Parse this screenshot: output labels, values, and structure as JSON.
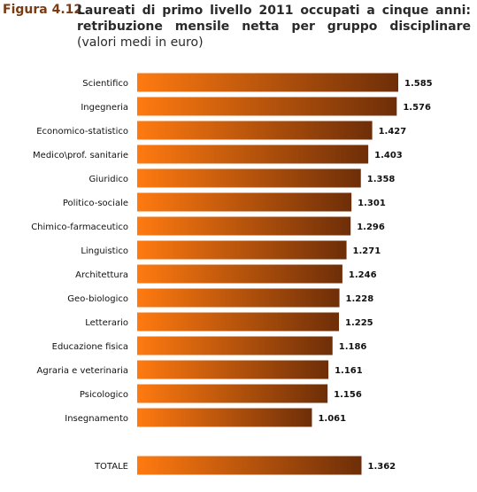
{
  "figure": {
    "label": "Figura 4.12",
    "title": "Laureati di primo livello 2011 occupati a cinque anni: retribuzione mensile netta per gruppo disciplinare",
    "subtitle": "(valori medi in euro)"
  },
  "colors": {
    "bar_start": "#ff7a10",
    "bar_end": "#6e2e08"
  },
  "chart_data": {
    "type": "bar",
    "orientation": "horizontal",
    "title": "Laureati di primo livello 2011 occupati a cinque anni: retribuzione mensile netta per gruppo disciplinare (valori medi in euro)",
    "categories": [
      "Scientifico",
      "Ingegneria",
      "Economico-statistico",
      "Medico\\prof. sanitarie",
      "Giuridico",
      "Politico-sociale",
      "Chimico-farmaceutico",
      "Linguistico",
      "Architettura",
      "Geo-biologico",
      "Letterario",
      "Educazione fisica",
      "Agraria e veterinaria",
      "Psicologico",
      "Insegnamento"
    ],
    "values": [
      1585,
      1576,
      1427,
      1403,
      1358,
      1301,
      1296,
      1271,
      1246,
      1228,
      1225,
      1186,
      1161,
      1156,
      1061
    ],
    "value_labels": [
      "1.585",
      "1.576",
      "1.427",
      "1.403",
      "1.358",
      "1.301",
      "1.296",
      "1.271",
      "1.246",
      "1.228",
      "1.225",
      "1.186",
      "1.161",
      "1.156",
      "1.061"
    ],
    "total": {
      "category": "TOTALE",
      "value": 1362,
      "value_label": "1.362"
    },
    "grid": false,
    "legend": "none"
  }
}
